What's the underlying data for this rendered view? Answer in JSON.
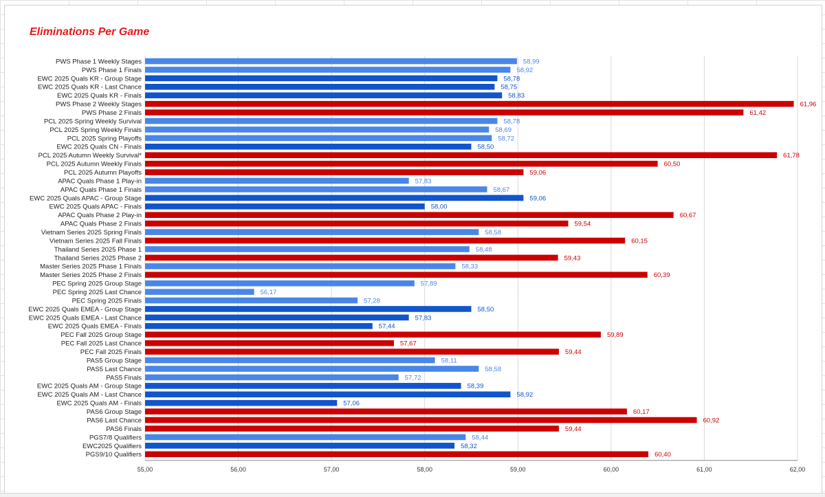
{
  "chart_data": {
    "type": "bar",
    "orientation": "horizontal",
    "title": "Eliminations Per Game",
    "xlabel": "",
    "ylabel": "",
    "xlim": [
      55,
      62
    ],
    "x_ticks": [
      "55,00",
      "56,00",
      "57,00",
      "58,00",
      "59,00",
      "60,00",
      "61,00",
      "62,00"
    ],
    "grid": true,
    "legend": "none",
    "colors": {
      "light_blue": "#4a86e8",
      "dark_blue": "#1155cc",
      "red": "#cc0000",
      "title": "#e5191c"
    },
    "categories": [
      "PWS Phase 1 Weekly Stages",
      "PWS Phase 1 Finals",
      "EWC 2025 Quals KR - Group Stage",
      "EWC 2025 Quals KR - Last Chance",
      "EWC 2025 Quals KR - Finals",
      "PWS Phase 2 Weekly Stages",
      "PWS Phase 2 Finals",
      "PCL 2025 Spring Weekly Survival",
      "PCL 2025 Spring Weekly Finals",
      "PCL 2025 Spring Playoffs",
      "EWC 2025 Quals CN - Finals",
      "PCL 2025 Autumn Weekly Survival*",
      "PCL 2025 Autumn Weekly Finals",
      "PCL 2025 Autumn Playoffs",
      "APAC Quals Phase 1 Play-in",
      "APAC Quals Phase 1 Finals",
      "EWC 2025 Quals APAC - Group Stage",
      "EWC 2025 Quals APAC - Finals",
      "APAC Quals Phase 2 Play-in",
      "APAC Quals Phase 2 Finals",
      "Vietnam Series 2025 Spring Finals",
      "Vietnam Series 2025 Fall Finals",
      "Thailand Series 2025 Phase 1",
      "Thailand Series 2025 Phase 2",
      "Master Series 2025 Phase 1 Finals",
      "Master Series 2025 Phase 2 Finals",
      "PEC Spring 2025 Group Stage",
      "PEC Spring 2025 Last Chance",
      "PEC Spring 2025 Finals",
      "EWC 2025 Quals EMEA - Group Stage",
      "EWC 2025 Quals EMEA - Last Chance",
      "EWC 2025 Quals EMEA - Finals",
      "PEC Fall 2025 Group Stage",
      "PEC Fall 2025 Last Chance",
      "PEC Fall 2025 Finals",
      "PAS5 Group Stage",
      "PAS5 Last Chance",
      "PAS5 Finals",
      "EWC 2025 Quals AM - Group Stage",
      "EWC 2025 Quals AM - Last Chance",
      "EWC 2025 Quals AM - Finals",
      "PAS6 Group Stage",
      "PAS6 Last Chance",
      "PAS6 Finals",
      "PGS7/8 Qualifiers",
      "EWC2025 Qualifiers",
      "PGS9/10 Qualifiers"
    ],
    "values": [
      58.99,
      58.92,
      58.78,
      58.75,
      58.83,
      61.96,
      61.42,
      58.78,
      58.69,
      58.72,
      58.5,
      61.78,
      60.5,
      59.06,
      57.83,
      58.67,
      59.06,
      58.0,
      60.67,
      59.54,
      58.58,
      60.15,
      58.48,
      59.43,
      58.33,
      60.39,
      57.89,
      56.17,
      57.28,
      58.5,
      57.83,
      57.44,
      59.89,
      57.67,
      59.44,
      58.11,
      58.58,
      57.72,
      58.39,
      58.92,
      57.06,
      60.17,
      60.92,
      59.44,
      58.44,
      58.32,
      60.4
    ],
    "value_labels": [
      "58,99",
      "58,92",
      "58,78",
      "58,75",
      "58,83",
      "61,96",
      "61,42",
      "58,78",
      "58,69",
      "58,72",
      "58,50",
      "61,78",
      "60,50",
      "59,06",
      "57,83",
      "58,67",
      "59,06",
      "58,00",
      "60,67",
      "59,54",
      "58,58",
      "60,15",
      "58,48",
      "59,43",
      "58,33",
      "60,39",
      "57,89",
      "56,17",
      "57,28",
      "58,50",
      "57,83",
      "57,44",
      "59,89",
      "57,67",
      "59,44",
      "58,11",
      "58,58",
      "57,72",
      "58,39",
      "58,92",
      "57,06",
      "60,17",
      "60,92",
      "59,44",
      "58,44",
      "58,32",
      "60,40"
    ],
    "bar_colors": [
      "light_blue",
      "light_blue",
      "dark_blue",
      "dark_blue",
      "dark_blue",
      "red",
      "red",
      "light_blue",
      "light_blue",
      "light_blue",
      "dark_blue",
      "red",
      "red",
      "red",
      "light_blue",
      "light_blue",
      "dark_blue",
      "dark_blue",
      "red",
      "red",
      "light_blue",
      "red",
      "light_blue",
      "red",
      "light_blue",
      "red",
      "light_blue",
      "light_blue",
      "light_blue",
      "dark_blue",
      "dark_blue",
      "dark_blue",
      "red",
      "red",
      "red",
      "light_blue",
      "light_blue",
      "light_blue",
      "dark_blue",
      "dark_blue",
      "dark_blue",
      "red",
      "red",
      "red",
      "light_blue",
      "dark_blue",
      "red"
    ]
  }
}
